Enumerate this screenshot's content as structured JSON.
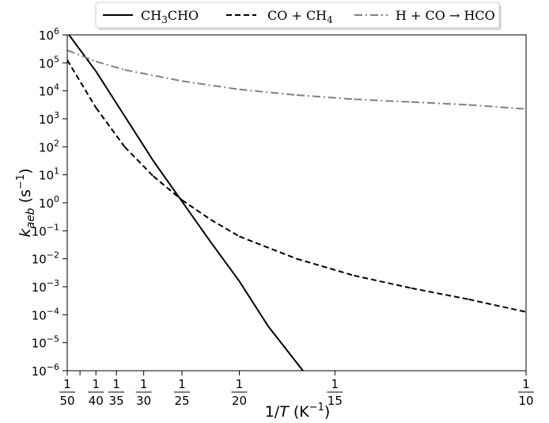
{
  "chart_data": {
    "type": "line",
    "title": "",
    "xlabel": {
      "base": "1/",
      "var": "T",
      "unit_open": " (K",
      "unit_exp": "−1",
      "unit_close": ")"
    },
    "ylabel": {
      "base": "k",
      "sub": "aeb",
      "unit_open": " (s",
      "unit_exp": "−1",
      "unit_close": ")"
    },
    "x_scale": "reciprocal",
    "xlim": [
      0.02,
      0.1
    ],
    "ylim_log10": [
      -6,
      6
    ],
    "grid": false,
    "legend_position": "top",
    "x_ticks": [
      {
        "value": 0.02,
        "num": "1",
        "den": "50"
      },
      {
        "value": 0.025,
        "num": "1",
        "den": "40"
      },
      {
        "value": 0.028571,
        "num": "1",
        "den": "35"
      },
      {
        "value": 0.033333,
        "num": "1",
        "den": "30"
      },
      {
        "value": 0.04,
        "num": "1",
        "den": "25"
      },
      {
        "value": 0.05,
        "num": "1",
        "den": "20"
      },
      {
        "value": 0.066667,
        "num": "1",
        "den": "15"
      },
      {
        "value": 0.1,
        "num": "1",
        "den": "10"
      }
    ],
    "x_minor_tick_temperatures": [
      45
    ],
    "y_ticks": [
      {
        "exp": -6,
        "base": "10",
        "sup": "−6"
      },
      {
        "exp": -5,
        "base": "10",
        "sup": "−5"
      },
      {
        "exp": -4,
        "base": "10",
        "sup": "−4"
      },
      {
        "exp": -3,
        "base": "10",
        "sup": "−3"
      },
      {
        "exp": -2,
        "base": "10",
        "sup": "−2"
      },
      {
        "exp": -1,
        "base": "10",
        "sup": "−1"
      },
      {
        "exp": 0,
        "base": "10",
        "sup": "0"
      },
      {
        "exp": 1,
        "base": "10",
        "sup": "1"
      },
      {
        "exp": 2,
        "base": "10",
        "sup": "2"
      },
      {
        "exp": 3,
        "base": "10",
        "sup": "3"
      },
      {
        "exp": 4,
        "base": "10",
        "sup": "4"
      },
      {
        "exp": 5,
        "base": "10",
        "sup": "5"
      },
      {
        "exp": 6,
        "base": "10",
        "sup": "6"
      }
    ],
    "series": [
      {
        "name": "CH3CHO",
        "legend": {
          "pre": "CH",
          "sub": "3",
          "post": "CHO"
        },
        "style": "solid",
        "color": "#000000",
        "inv_T": [
          0.0203,
          0.025,
          0.03,
          0.035,
          0.04,
          0.045,
          0.05,
          0.055,
          0.0611
        ],
        "log10_k": [
          6.0,
          4.7,
          3.1,
          1.5,
          0.05,
          -1.4,
          -2.8,
          -4.4,
          -6.0
        ]
      },
      {
        "name": "CO + CH4",
        "legend": {
          "pre": "CO + CH",
          "sub": "4",
          "post": ""
        },
        "style": "dashed",
        "color": "#000000",
        "inv_T": [
          0.02,
          0.025,
          0.03,
          0.035,
          0.04,
          0.045,
          0.05,
          0.06,
          0.07,
          0.08,
          0.09,
          0.1
        ],
        "log10_k": [
          5.1,
          3.4,
          2.0,
          0.95,
          0.1,
          -0.6,
          -1.2,
          -2.0,
          -2.6,
          -3.05,
          -3.45,
          -3.9
        ]
      },
      {
        "name": "H + CO → HCO",
        "legend": {
          "pre": "H + CO → HCO",
          "sub": "",
          "post": ""
        },
        "style": "dashdot",
        "color": "#808080",
        "inv_T": [
          0.02,
          0.025,
          0.03,
          0.04,
          0.05,
          0.06,
          0.07,
          0.08,
          0.09,
          0.1
        ],
        "log10_k": [
          5.45,
          5.05,
          4.75,
          4.35,
          4.05,
          3.85,
          3.7,
          3.6,
          3.5,
          3.35
        ]
      }
    ]
  }
}
